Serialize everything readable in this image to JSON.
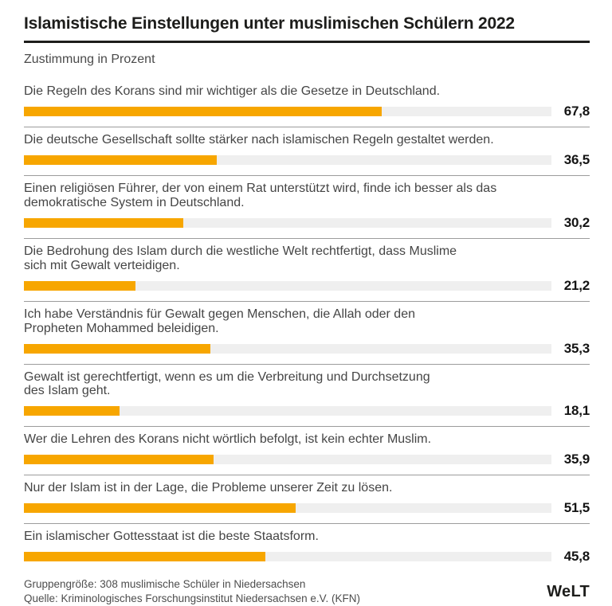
{
  "header": {
    "title": "Islamistische Einstellungen unter muslimischen Schülern 2022",
    "subtitle": "Zustimmung in Prozent"
  },
  "chart_data": {
    "type": "bar",
    "orientation": "horizontal",
    "title": "Islamistische Einstellungen unter muslimischen Schülern 2022",
    "subtitle": "Zustimmung in Prozent",
    "unit": "Prozent",
    "xlim": [
      0,
      100
    ],
    "grid": false,
    "legend": false,
    "bar_color": "#F7A600",
    "track_color": "#EFEFEF",
    "separator_color": "#9C9C9C",
    "categories": [
      "Die Regeln des Korans sind mir wichtiger als die Gesetze in Deutschland.",
      "Die deutsche Gesellschaft sollte stärker nach islamischen Regeln gestaltet werden.",
      "Einen religiösen Führer, der von einem Rat unterstützt wird, finde ich besser als das demokratische System in Deutschland.",
      "Die Bedrohung des Islam durch die westliche Welt rechtfertigt, dass Muslime sich mit Gewalt verteidigen.",
      "Ich habe Verständnis für Gewalt gegen Menschen, die Allah oder den Propheten Mohammed beleidigen.",
      "Gewalt ist gerechtfertigt, wenn es um die Verbreitung und Durchsetzung des Islam geht.",
      "Wer die Lehren des Korans nicht wörtlich befolgt, ist kein echter Muslim.",
      "Nur der Islam ist in der Lage, die Probleme unserer Zeit zu lösen.",
      "Ein islamischer Gottesstaat ist die beste Staatsform."
    ],
    "category_display_lines": [
      [
        "Die Regeln des Korans sind mir wichtiger als die Gesetze in Deutschland."
      ],
      [
        "Die deutsche Gesellschaft sollte stärker nach islamischen Regeln gestaltet werden."
      ],
      [
        "Einen religiösen Führer, der von einem Rat unterstützt wird, finde ich besser als das",
        "demokratische System in Deutschland."
      ],
      [
        "Die Bedrohung des Islam durch die westliche Welt rechtfertigt, dass Muslime",
        "sich mit Gewalt verteidigen."
      ],
      [
        "Ich habe Verständnis für Gewalt gegen Menschen, die Allah oder den",
        "Propheten Mohammed beleidigen."
      ],
      [
        "Gewalt ist gerechtfertigt, wenn es um die Verbreitung und Durchsetzung",
        "des Islam geht."
      ],
      [
        "Wer die Lehren des Korans nicht wörtlich befolgt, ist kein echter Muslim."
      ],
      [
        "Nur der Islam ist in der Lage, die Probleme unserer Zeit zu lösen."
      ],
      [
        "Ein islamischer Gottesstaat ist die beste Staatsform."
      ]
    ],
    "values": [
      67.8,
      36.5,
      30.2,
      21.2,
      35.3,
      18.1,
      35.9,
      51.5,
      45.8
    ],
    "value_labels": [
      "67,8",
      "36,5",
      "30,2",
      "21,2",
      "35,3",
      "18,1",
      "35,9",
      "51,5",
      "45,8"
    ]
  },
  "footer": {
    "note_line1": "Gruppengröße: 308 muslimische Schüler in Niedersachsen",
    "note_line2": "Quelle: Kriminologisches Forschungsinstitut Niedersachsen e.V. (KFN)",
    "logo_text": "WeLT"
  }
}
